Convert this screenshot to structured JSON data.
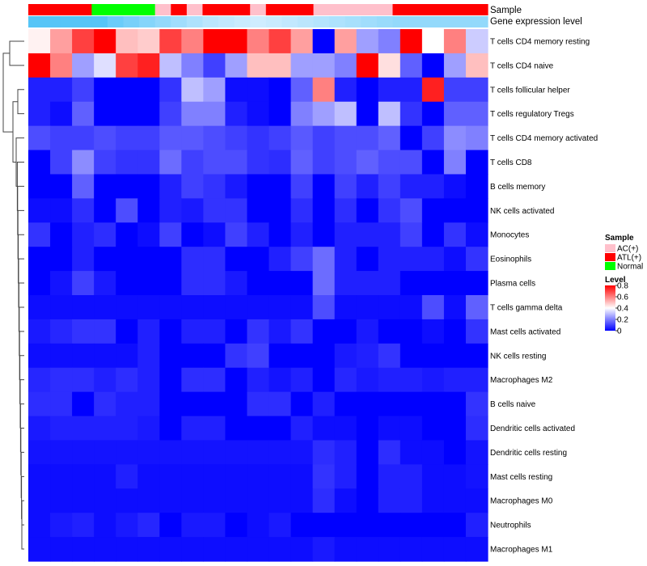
{
  "chart_data": {
    "type": "heatmap",
    "title": "",
    "annotation_rows": [
      "Sample",
      "Gene expression level"
    ],
    "sample_groups": [
      "ATL(+)",
      "ATL(+)",
      "ATL(+)",
      "ATL(+)",
      "Normal",
      "Normal",
      "Normal",
      "Normal",
      "AC(+)",
      "ATL(+)",
      "AC(+)",
      "ATL(+)",
      "ATL(+)",
      "ATL(+)",
      "AC(+)",
      "ATL(+)",
      "ATL(+)",
      "ATL(+)",
      "AC(+)",
      "AC(+)",
      "AC(+)",
      "AC(+)",
      "AC(+)",
      "ATL(+)",
      "ATL(+)",
      "ATL(+)",
      "ATL(+)",
      "ATL(+)",
      "ATL(+)"
    ],
    "gene_expression_level": [
      0.95,
      0.95,
      0.95,
      0.95,
      0.95,
      0.8,
      0.7,
      0.6,
      0.5,
      0.4,
      0.3,
      0.2,
      0.15,
      0.1,
      0.05,
      0.1,
      0.15,
      0.2,
      0.25,
      0.3,
      0.35,
      0.4,
      0.45,
      0.5,
      0.5,
      0.5,
      0.5,
      0.5,
      0.5
    ],
    "rows": [
      "T cells CD4 memory resting",
      "T cells CD4 naive",
      "T cells follicular helper",
      "T cells regulatory  Tregs",
      "T cells CD4 memory activated",
      "T cells CD8",
      "B cells memory",
      "NK cells activated",
      "Monocytes",
      "Eosinophils",
      "Plasma cells",
      "T cells gamma delta",
      "Mast cells activated",
      "NK cells resting",
      "Macrophages M2",
      "B cells naive",
      "Dendritic cells activated",
      "Dendritic cells resting",
      "Mast cells resting",
      "Macrophages M0",
      "Neutrophils",
      "Macrophages M1"
    ],
    "values": [
      [
        0.42,
        0.55,
        0.7,
        0.8,
        0.5,
        0.48,
        0.7,
        0.6,
        0.8,
        0.8,
        0.6,
        0.7,
        0.55,
        0.0,
        0.55,
        0.25,
        0.2,
        0.8,
        0.4,
        0.6,
        0.32
      ],
      [
        0.8,
        0.6,
        0.25,
        0.35,
        0.7,
        0.75,
        0.3,
        0.2,
        0.1,
        0.25,
        0.5,
        0.5,
        0.25,
        0.25,
        0.2,
        0.8,
        0.45,
        0.15,
        0.0,
        0.25,
        0.5
      ],
      [
        0.05,
        0.05,
        0.1,
        0.0,
        0.0,
        0.0,
        0.08,
        0.3,
        0.25,
        0.02,
        0.02,
        0.0,
        0.15,
        0.6,
        0.05,
        0.0,
        0.05,
        0.05,
        0.75,
        0.1,
        0.1
      ],
      [
        0.05,
        0.02,
        0.15,
        0.0,
        0.0,
        0.0,
        0.1,
        0.2,
        0.2,
        0.05,
        0.02,
        0.0,
        0.2,
        0.25,
        0.3,
        0.0,
        0.3,
        0.08,
        0.0,
        0.15,
        0.15
      ],
      [
        0.12,
        0.1,
        0.1,
        0.12,
        0.1,
        0.1,
        0.14,
        0.14,
        0.12,
        0.1,
        0.08,
        0.1,
        0.14,
        0.1,
        0.12,
        0.12,
        0.15,
        0.0,
        0.1,
        0.22,
        0.2
      ],
      [
        0.0,
        0.1,
        0.22,
        0.1,
        0.08,
        0.08,
        0.17,
        0.1,
        0.12,
        0.12,
        0.08,
        0.07,
        0.15,
        0.1,
        0.12,
        0.15,
        0.12,
        0.12,
        0.0,
        0.2,
        0.0
      ],
      [
        0.0,
        0.0,
        0.15,
        0.0,
        0.0,
        0.0,
        0.05,
        0.1,
        0.08,
        0.04,
        0.0,
        0.0,
        0.1,
        0.0,
        0.1,
        0.05,
        0.1,
        0.05,
        0.05,
        0.02,
        0.0
      ],
      [
        0.02,
        0.02,
        0.07,
        0.0,
        0.12,
        0.0,
        0.05,
        0.04,
        0.08,
        0.08,
        0.0,
        0.0,
        0.07,
        0.0,
        0.07,
        0.0,
        0.08,
        0.12,
        0.0,
        0.0,
        0.0
      ],
      [
        0.08,
        0.0,
        0.05,
        0.07,
        0.0,
        0.02,
        0.1,
        0.0,
        0.02,
        0.1,
        0.05,
        0.0,
        0.05,
        0.0,
        0.05,
        0.05,
        0.05,
        0.1,
        0.0,
        0.08,
        0.02
      ],
      [
        0.0,
        0.0,
        0.05,
        0.0,
        0.0,
        0.0,
        0.0,
        0.07,
        0.07,
        0.0,
        0.0,
        0.05,
        0.1,
        0.17,
        0.05,
        0.0,
        0.05,
        0.05,
        0.05,
        0.02,
        0.08
      ],
      [
        0.0,
        0.03,
        0.1,
        0.04,
        0.0,
        0.0,
        0.0,
        0.07,
        0.07,
        0.04,
        0.0,
        0.0,
        0.0,
        0.17,
        0.05,
        0.05,
        0.05,
        0.0,
        0.0,
        0.0,
        0.0
      ],
      [
        0.02,
        0.02,
        0.02,
        0.02,
        0.02,
        0.02,
        0.02,
        0.02,
        0.02,
        0.02,
        0.02,
        0.02,
        0.02,
        0.12,
        0.02,
        0.02,
        0.02,
        0.02,
        0.12,
        0.02,
        0.15
      ],
      [
        0.04,
        0.06,
        0.08,
        0.08,
        0.0,
        0.05,
        0.0,
        0.05,
        0.05,
        0.0,
        0.08,
        0.04,
        0.08,
        0.0,
        0.0,
        0.04,
        0.0,
        0.0,
        0.02,
        0.0,
        0.08
      ],
      [
        0.02,
        0.02,
        0.02,
        0.02,
        0.02,
        0.05,
        0.0,
        0.0,
        0.0,
        0.08,
        0.1,
        0.0,
        0.0,
        0.0,
        0.04,
        0.05,
        0.08,
        0.0,
        0.0,
        0.0,
        0.0
      ],
      [
        0.06,
        0.07,
        0.07,
        0.05,
        0.07,
        0.05,
        0.0,
        0.07,
        0.07,
        0.0,
        0.05,
        0.03,
        0.05,
        0.0,
        0.06,
        0.04,
        0.05,
        0.05,
        0.04,
        0.05,
        0.05
      ],
      [
        0.07,
        0.07,
        0.0,
        0.07,
        0.05,
        0.05,
        0.0,
        0.0,
        0.0,
        0.0,
        0.07,
        0.07,
        0.0,
        0.05,
        0.0,
        0.0,
        0.0,
        0.0,
        0.0,
        0.0,
        0.08
      ],
      [
        0.04,
        0.05,
        0.05,
        0.05,
        0.05,
        0.04,
        0.0,
        0.05,
        0.05,
        0.0,
        0.0,
        0.0,
        0.05,
        0.02,
        0.02,
        0.0,
        0.02,
        0.02,
        0.0,
        0.0,
        0.07
      ],
      [
        0.03,
        0.03,
        0.03,
        0.03,
        0.03,
        0.03,
        0.03,
        0.03,
        0.03,
        0.03,
        0.03,
        0.03,
        0.03,
        0.07,
        0.05,
        0.0,
        0.07,
        0.02,
        0.02,
        0.0,
        0.03
      ],
      [
        0.02,
        0.02,
        0.02,
        0.02,
        0.05,
        0.02,
        0.02,
        0.02,
        0.02,
        0.02,
        0.02,
        0.02,
        0.02,
        0.08,
        0.05,
        0.0,
        0.05,
        0.05,
        0.02,
        0.02,
        0.03
      ],
      [
        0.02,
        0.02,
        0.02,
        0.02,
        0.02,
        0.02,
        0.02,
        0.02,
        0.02,
        0.02,
        0.02,
        0.02,
        0.02,
        0.07,
        0.02,
        0.0,
        0.05,
        0.05,
        0.02,
        0.02,
        0.02
      ],
      [
        0.02,
        0.04,
        0.05,
        0.02,
        0.04,
        0.06,
        0.0,
        0.04,
        0.04,
        0.0,
        0.02,
        0.04,
        0.0,
        0.0,
        0.0,
        0.0,
        0.0,
        0.0,
        0.0,
        0.0,
        0.05
      ],
      [
        0.02,
        0.02,
        0.02,
        0.02,
        0.02,
        0.02,
        0.02,
        0.02,
        0.02,
        0.02,
        0.02,
        0.02,
        0.02,
        0.04,
        0.02,
        0.02,
        0.02,
        0.02,
        0.02,
        0.02,
        0.02
      ]
    ],
    "dendrogram": true,
    "legend": {
      "position": "right",
      "sample_title": "Sample",
      "sample_entries": [
        {
          "label": "AC(+)",
          "color": "#ffc0cb"
        },
        {
          "label": "ATL(+)",
          "color": "#ff0000"
        },
        {
          "label": "Normal",
          "color": "#00ff00"
        }
      ],
      "level_title": "Level",
      "level_ticks": [
        "0.8",
        "0.6",
        "0.4",
        "0.2",
        "0"
      ],
      "level_range": [
        0,
        0.8
      ]
    },
    "colors": {
      "low": "#0000ff",
      "mid": "#ffffff",
      "high": "#ff0000",
      "expr_dark": "#4fc3f7",
      "expr_light": "#d6efff"
    }
  }
}
